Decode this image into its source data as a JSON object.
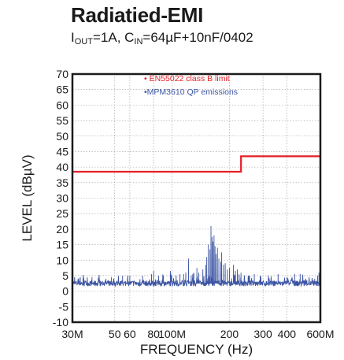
{
  "title": "Radiatied-EMI",
  "subtitle": {
    "i_base": "I",
    "i_sub": "OUT",
    "i_rest": "=1A, C",
    "c_sub": "IN",
    "c_rest": "=64µF+10nF/0402"
  },
  "colors": {
    "limit": "#e41f26",
    "emissions": "#3d55a3",
    "grid": "#9a9a9a",
    "frame": "#1a1a1a"
  },
  "chart_data": {
    "type": "line",
    "title": "Radiatied-EMI",
    "xlabel": "FREQUENCY (Hz)",
    "ylabel": "LEVEL (dBµV)",
    "x_scale": "log",
    "xlim": [
      30,
      600
    ],
    "ylim": [
      -10,
      70
    ],
    "grid": true,
    "legend_placement": "top-left",
    "x_ticks": [
      {
        "value": 30,
        "label": "30M"
      },
      {
        "value": 50,
        "label": "50"
      },
      {
        "value": 60,
        "label": "60"
      },
      {
        "value": 80,
        "label": "80"
      },
      {
        "value": 100,
        "label": "100M"
      },
      {
        "value": 200,
        "label": "200"
      },
      {
        "value": 300,
        "label": "300"
      },
      {
        "value": 400,
        "label": "400"
      },
      {
        "value": 600,
        "label": "600M"
      }
    ],
    "y_ticks": [
      -10,
      -5,
      0,
      5,
      10,
      15,
      20,
      25,
      30,
      35,
      40,
      45,
      50,
      55,
      60,
      65,
      70
    ],
    "series": [
      {
        "name": "EN55022 class B limit",
        "color": "#e41f26",
        "marker": "•",
        "points": [
          [
            30,
            38.5
          ],
          [
            230,
            38.5
          ],
          [
            230,
            43.5
          ],
          [
            600,
            43.5
          ]
        ]
      },
      {
        "name": "MPM3610 QP emissions",
        "color": "#3d55a3",
        "marker": "•",
        "baseline": 2.5,
        "peaks": [
          [
            33,
            4.5
          ],
          [
            38,
            4.5
          ],
          [
            45,
            4.0
          ],
          [
            48,
            4.5
          ],
          [
            55,
            5.0
          ],
          [
            60,
            5.0
          ],
          [
            70,
            5.0
          ],
          [
            78,
            5.5
          ],
          [
            80,
            6.5
          ],
          [
            85,
            5.0
          ],
          [
            90,
            5.0
          ],
          [
            98,
            6.5
          ],
          [
            105,
            5.0
          ],
          [
            110,
            5.5
          ],
          [
            115,
            5.5
          ],
          [
            118,
            6.0
          ],
          [
            122,
            10.5
          ],
          [
            126,
            5.0
          ],
          [
            130,
            6.0
          ],
          [
            135,
            7.5
          ],
          [
            138,
            6.0
          ],
          [
            145,
            7.0
          ],
          [
            150,
            8.5
          ],
          [
            152,
            11.0
          ],
          [
            155,
            15.0
          ],
          [
            158,
            13.5
          ],
          [
            160,
            21.0
          ],
          [
            162,
            17.5
          ],
          [
            164,
            16.0
          ],
          [
            166,
            18.0
          ],
          [
            168,
            14.5
          ],
          [
            170,
            12.0
          ],
          [
            173,
            14.0
          ],
          [
            176,
            10.5
          ],
          [
            180,
            9.5
          ],
          [
            182,
            12.5
          ],
          [
            186,
            8.5
          ],
          [
            190,
            9.0
          ],
          [
            195,
            7.0
          ],
          [
            200,
            7.5
          ],
          [
            210,
            8.5
          ],
          [
            215,
            6.5
          ],
          [
            220,
            7.0
          ],
          [
            230,
            6.0
          ],
          [
            240,
            5.0
          ],
          [
            255,
            5.0
          ],
          [
            270,
            5.5
          ],
          [
            290,
            5.0
          ],
          [
            320,
            5.0
          ],
          [
            360,
            5.5
          ],
          [
            400,
            4.5
          ],
          [
            440,
            5.5
          ],
          [
            470,
            5.5
          ],
          [
            510,
            3.5
          ],
          [
            540,
            3.0
          ],
          [
            560,
            4.0
          ],
          [
            580,
            5.0
          ],
          [
            590,
            6.0
          ],
          [
            600,
            4.0
          ]
        ]
      }
    ]
  }
}
